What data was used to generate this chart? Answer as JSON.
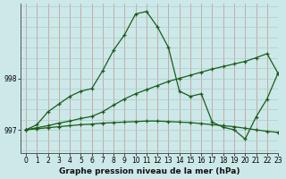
{
  "title": "Graphe pression niveau de la mer (hPa)",
  "background_color": "#cce8e8",
  "plot_bg_color": "#cce8e8",
  "line_color": "#1a5c1a",
  "xlim": [
    -0.5,
    23
  ],
  "ylim": [
    996.55,
    999.45
  ],
  "yticks": [
    997,
    998
  ],
  "xticks": [
    0,
    1,
    2,
    3,
    4,
    5,
    6,
    7,
    8,
    9,
    10,
    11,
    12,
    13,
    14,
    15,
    16,
    17,
    18,
    19,
    20,
    21,
    22,
    23
  ],
  "s1_x": [
    0,
    1,
    2,
    3,
    4,
    5,
    6,
    7,
    8,
    9,
    10,
    11,
    12,
    13,
    14,
    15,
    16,
    17,
    18,
    19,
    20,
    21,
    22,
    23
  ],
  "s1_y": [
    997.0,
    997.1,
    997.35,
    997.5,
    997.65,
    997.75,
    997.8,
    998.15,
    998.55,
    998.85,
    999.25,
    999.3,
    999.0,
    998.6,
    997.75,
    997.65,
    997.7,
    997.15,
    997.05,
    997.0,
    996.82,
    997.25,
    997.6,
    998.1
  ],
  "s2_x": [
    0,
    1,
    2,
    3,
    4,
    5,
    6,
    7,
    8,
    9,
    10,
    11,
    12,
    13,
    14,
    15,
    16,
    17,
    18,
    19,
    20,
    21,
    22,
    23
  ],
  "s2_y": [
    997.0,
    997.04,
    997.08,
    997.13,
    997.17,
    997.22,
    997.26,
    997.35,
    997.48,
    997.6,
    997.7,
    997.78,
    997.86,
    997.94,
    998.0,
    998.06,
    998.12,
    998.18,
    998.23,
    998.28,
    998.33,
    998.4,
    998.48,
    998.1
  ],
  "s3_x": [
    0,
    1,
    2,
    3,
    4,
    5,
    6,
    7,
    8,
    9,
    10,
    11,
    12,
    13,
    14,
    15,
    16,
    17,
    18,
    19,
    20,
    21,
    22,
    23
  ],
  "s3_y": [
    997.0,
    997.02,
    997.04,
    997.06,
    997.08,
    997.1,
    997.11,
    997.13,
    997.14,
    997.15,
    997.16,
    997.17,
    997.17,
    997.16,
    997.15,
    997.14,
    997.12,
    997.1,
    997.08,
    997.06,
    997.03,
    997.0,
    996.97,
    996.95
  ],
  "tick_fontsize": 5.5,
  "title_fontsize": 6.5
}
